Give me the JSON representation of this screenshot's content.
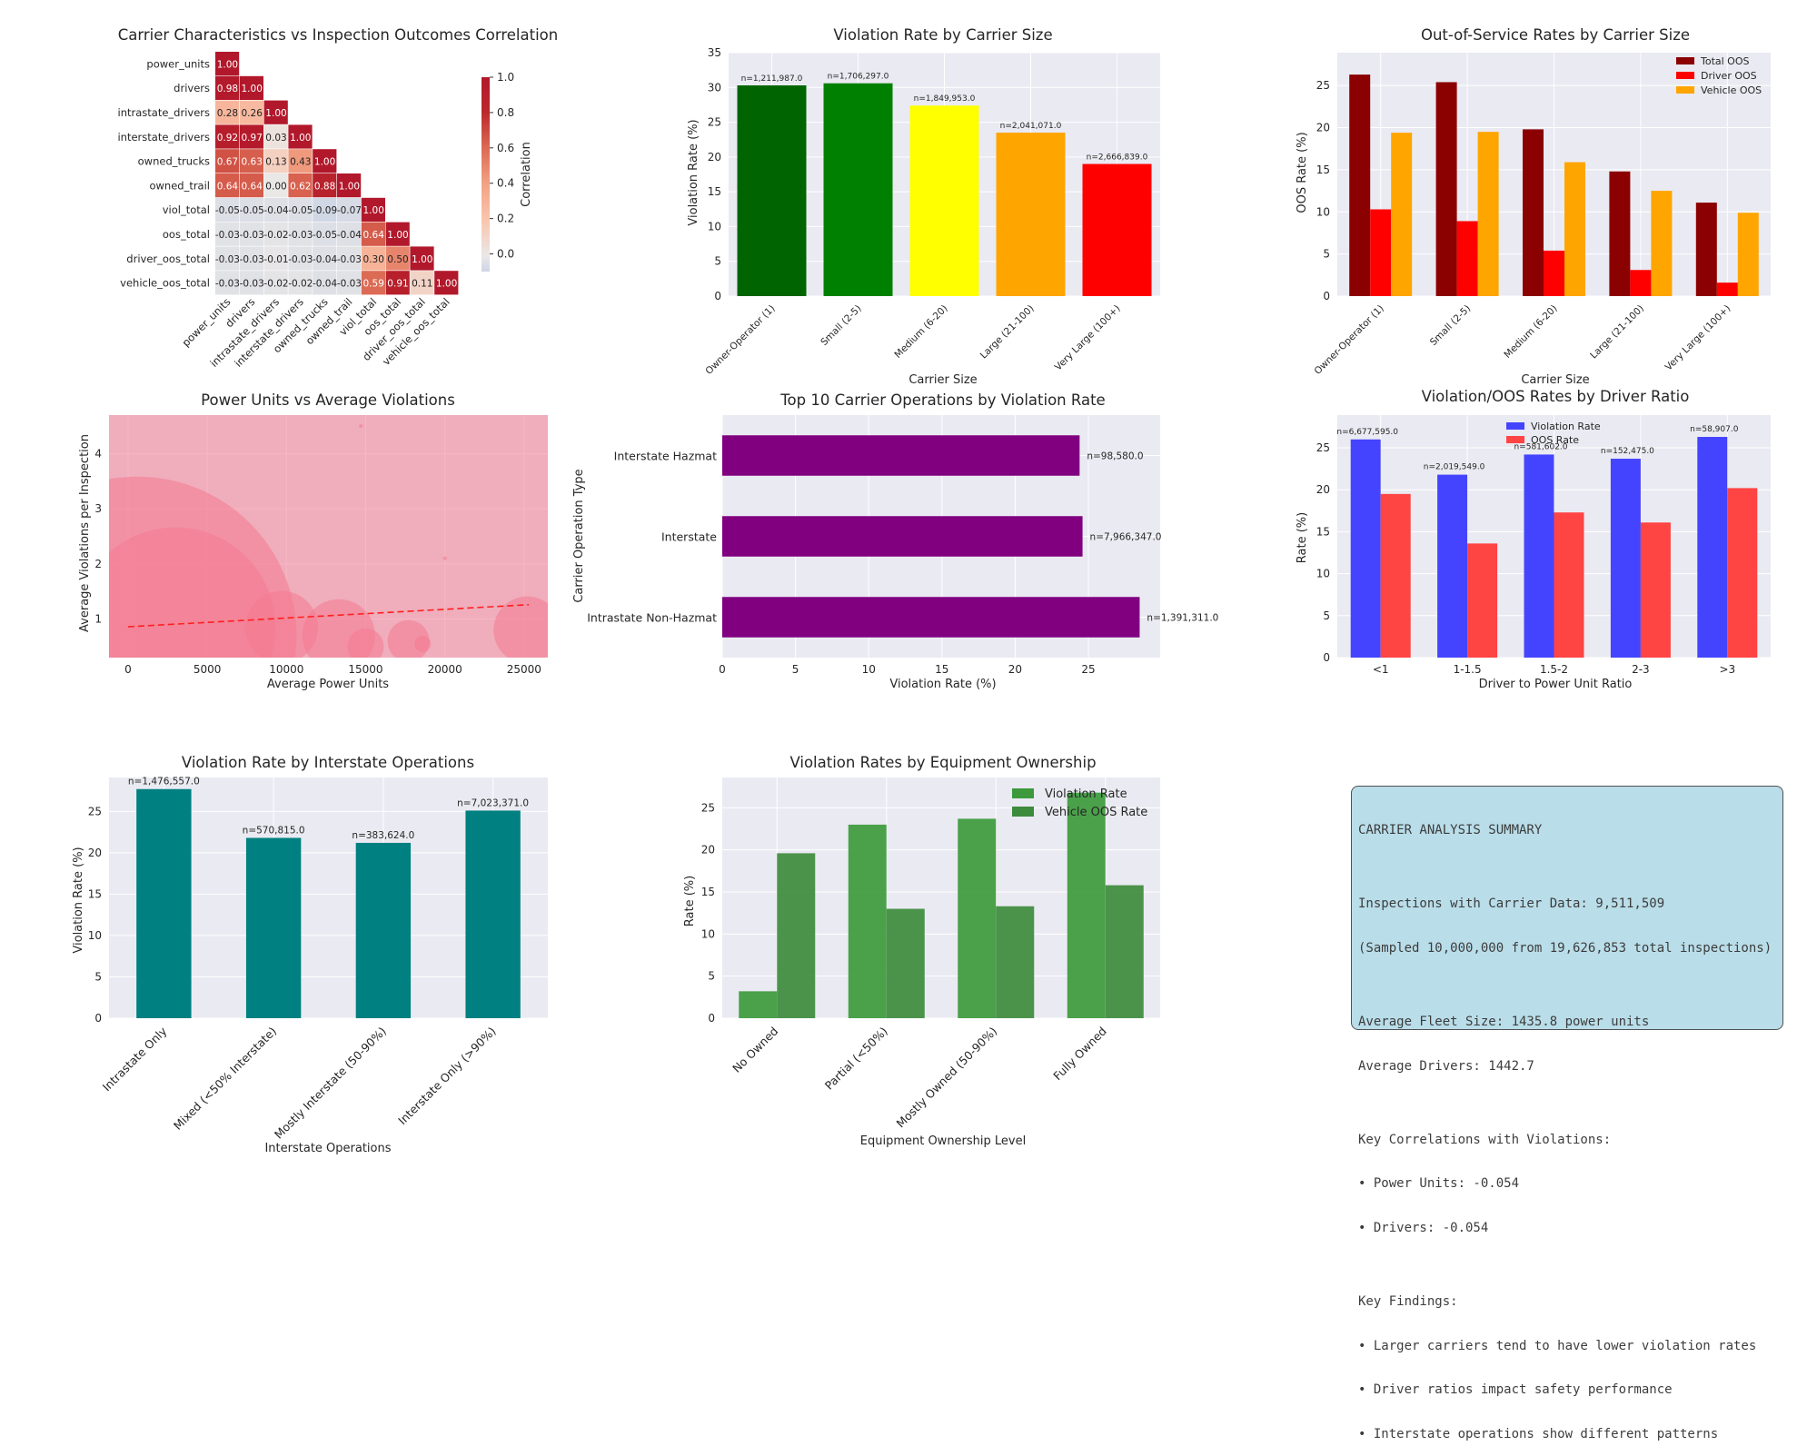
{
  "corr": {
    "title": "Carrier Characteristics vs Inspection Outcomes Correlation",
    "labels": [
      "power_units",
      "drivers",
      "intrastate_drivers",
      "interstate_drivers",
      "owned_trucks",
      "owned_trail",
      "viol_total",
      "oos_total",
      "driver_oos_total",
      "vehicle_oos_total"
    ],
    "matrix": [
      [
        1.0
      ],
      [
        0.98,
        1.0
      ],
      [
        0.28,
        0.26,
        1.0
      ],
      [
        0.92,
        0.97,
        0.03,
        1.0
      ],
      [
        0.67,
        0.63,
        0.13,
        0.43,
        1.0
      ],
      [
        0.64,
        0.64,
        0.0,
        0.62,
        0.88,
        1.0
      ],
      [
        -0.05,
        -0.05,
        -0.04,
        -0.05,
        -0.09,
        -0.07,
        1.0
      ],
      [
        -0.03,
        -0.03,
        -0.02,
        -0.03,
        -0.05,
        -0.04,
        0.64,
        1.0
      ],
      [
        -0.03,
        -0.03,
        -0.01,
        -0.03,
        -0.04,
        -0.03,
        0.3,
        0.5,
        1.0
      ],
      [
        -0.03,
        -0.03,
        -0.02,
        -0.02,
        -0.04,
        -0.03,
        0.59,
        0.91,
        0.11,
        1.0
      ]
    ],
    "colorbar_label": "Correlation",
    "colorbar_ticks": [
      "1.0",
      "0.8",
      "0.6",
      "0.4",
      "0.2",
      "0.0"
    ]
  },
  "size_viol": {
    "title": "Violation Rate by Carrier Size",
    "xlabel": "Carrier Size",
    "ylabel": "Violation Rate (%)",
    "categories": [
      "Owner-Operator (1)",
      "Small (2-5)",
      "Medium (6-20)",
      "Large (21-100)",
      "Very Large (100+)"
    ],
    "values": [
      30.3,
      30.6,
      27.4,
      23.5,
      19.0
    ],
    "labels": [
      "n=1,211,987.0",
      "n=1,706,297.0",
      "n=1,849,953.0",
      "n=2,041,071.0",
      "n=2,666,839.0"
    ],
    "colors": [
      "#006400",
      "#008000",
      "#ffff00",
      "#ffa500",
      "#ff0000"
    ],
    "ylim": [
      0,
      35
    ],
    "yticks": [
      0,
      5,
      10,
      15,
      20,
      25,
      30,
      35
    ]
  },
  "size_oos": {
    "title": "Out-of-Service Rates by Carrier Size",
    "xlabel": "Carrier Size",
    "ylabel": "OOS Rate (%)",
    "categories": [
      "Owner-Operator (1)",
      "Small (2-5)",
      "Medium (6-20)",
      "Large (21-100)",
      "Very Large (100+)"
    ],
    "series": [
      {
        "name": "Total OOS",
        "color": "#8b0000",
        "values": [
          26.3,
          25.4,
          19.8,
          14.8,
          11.1
        ]
      },
      {
        "name": "Driver OOS",
        "color": "#ff0000",
        "values": [
          10.3,
          8.9,
          5.4,
          3.1,
          1.6
        ]
      },
      {
        "name": "Vehicle OOS",
        "color": "#ffa500",
        "values": [
          19.4,
          19.5,
          15.9,
          12.5,
          9.9
        ]
      }
    ],
    "ylim": [
      0,
      28.9
    ],
    "yticks": [
      0,
      5,
      10,
      15,
      20,
      25
    ]
  },
  "bubble": {
    "title": "Power Units vs Average Violations",
    "xlabel": "Average Power Units",
    "ylabel": "Average Violations per Inspection",
    "xticks": [
      0,
      5000,
      10000,
      15000,
      20000,
      25000
    ],
    "yticks": [
      1,
      2,
      3,
      4
    ],
    "xlim": [
      -1200,
      26500
    ],
    "ylim": [
      0.3,
      4.7
    ],
    "points": [
      {
        "x": 600,
        "y": 0.7,
        "r": 175
      },
      {
        "x": 3000,
        "y": 0.85,
        "r": 110
      },
      {
        "x": 9700,
        "y": 0.85,
        "r": 40
      },
      {
        "x": 13300,
        "y": 0.7,
        "r": 40
      },
      {
        "x": 15000,
        "y": 0.5,
        "r": 20
      },
      {
        "x": 17700,
        "y": 0.6,
        "r": 23
      },
      {
        "x": 18600,
        "y": 0.55,
        "r": 9
      },
      {
        "x": 25200,
        "y": 0.8,
        "r": 37
      },
      {
        "x": 14700,
        "y": 4.5,
        "r": 2
      },
      {
        "x": 20000,
        "y": 2.1,
        "r": 2
      }
    ],
    "trend": {
      "x0": 0,
      "y0": 0.86,
      "x1": 25300,
      "y1": 1.26
    },
    "bubble_color": "#f47a8f"
  },
  "ops": {
    "title": "Top 10 Carrier Operations by Violation Rate",
    "xlabel": "Violation Rate (%)",
    "ylabel": "Carrier Operation Type",
    "categories": [
      "Interstate Hazmat",
      "Interstate",
      "Intrastate Non-Hazmat"
    ],
    "values": [
      24.4,
      24.6,
      28.5
    ],
    "labels": [
      "n=98,580.0",
      "n=7,966,347.0",
      "n=1,391,311.0"
    ],
    "color": "#800080",
    "xlim": [
      0,
      29.9
    ],
    "xticks": [
      0,
      5,
      10,
      15,
      20,
      25
    ]
  },
  "driver_ratio": {
    "title": "Violation/OOS Rates by Driver Ratio",
    "xlabel": "Driver to Power Unit Ratio",
    "ylabel": "Rate (%)",
    "categories": [
      "<1",
      "1-1.5",
      "1.5-2",
      "2-3",
      ">3"
    ],
    "series": [
      {
        "name": "Violation Rate",
        "color": "#4444ff",
        "values": [
          26.0,
          21.8,
          24.2,
          23.7,
          26.3
        ]
      },
      {
        "name": "OOS Rate",
        "color": "#ff4444",
        "values": [
          19.5,
          13.6,
          17.3,
          16.1,
          20.2
        ]
      }
    ],
    "labels": [
      "n=6,677,595.0",
      "n=2,019,549.0",
      "n=581,602.0",
      "n=152,475.0",
      "n=58,907.0"
    ],
    "ylim": [
      0,
      28.9
    ],
    "yticks": [
      0,
      5,
      10,
      15,
      20,
      25
    ]
  },
  "interstate": {
    "title": "Violation Rate by Interstate Operations",
    "xlabel": "Interstate Operations",
    "ylabel": "Violation Rate (%)",
    "categories": [
      "Intrastate Only",
      "Mixed (<50% Interstate)",
      "Mostly Interstate (50-90%)",
      "Interstate Only (>90%)"
    ],
    "values": [
      27.7,
      21.8,
      21.2,
      25.1
    ],
    "labels": [
      "n=1,476,557.0",
      "n=570,815.0",
      "n=383,624.0",
      "n=7,023,371.0"
    ],
    "color": "#008080",
    "ylim": [
      0,
      29.1
    ],
    "yticks": [
      0,
      5,
      10,
      15,
      20,
      25
    ]
  },
  "ownership": {
    "title": "Violation Rates by Equipment Ownership",
    "xlabel": "Equipment Ownership Level",
    "ylabel": "Rate (%)",
    "categories": [
      "No Owned",
      "Partial (<50%)",
      "Mostly Owned (50-90%)",
      "Fully Owned"
    ],
    "series": [
      {
        "name": "Violation Rate",
        "color": "#3c9a3c",
        "values": [
          3.2,
          23.0,
          23.7,
          26.8
        ]
      },
      {
        "name": "Vehicle OOS Rate",
        "color": "#3d8b3d",
        "values": [
          19.6,
          13.0,
          13.3,
          15.8
        ]
      }
    ],
    "ylim": [
      0,
      28.6
    ],
    "yticks": [
      0,
      5,
      10,
      15,
      20,
      25
    ]
  },
  "summary": {
    "lines": [
      "CARRIER ANALYSIS SUMMARY",
      "",
      "Inspections with Carrier Data: 9,511,509",
      "(Sampled 10,000,000 from 19,626,853 total inspections)",
      "",
      "Average Fleet Size: 1435.8 power units",
      "Average Drivers: 1442.7",
      "",
      "Key Correlations with Violations:",
      "• Power Units: -0.054",
      "• Drivers: -0.054",
      "",
      "Key Findings:",
      "• Larger carriers tend to have lower violation rates",
      "• Driver ratios impact safety performance",
      "• Interstate operations show different patterns"
    ]
  }
}
